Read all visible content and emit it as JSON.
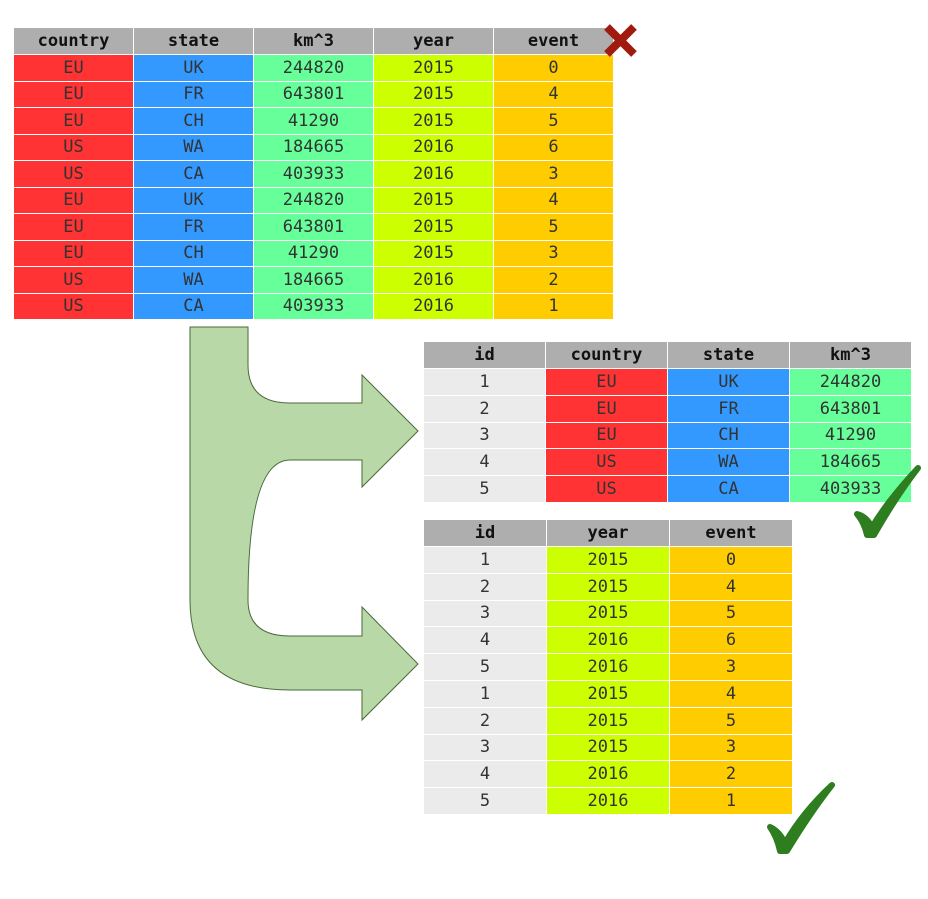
{
  "wide_table": {
    "headers": [
      "country",
      "state",
      "km^3",
      "year",
      "event"
    ],
    "rows": [
      [
        "EU",
        "UK",
        "244820",
        "2015",
        "0"
      ],
      [
        "EU",
        "FR",
        "643801",
        "2015",
        "4"
      ],
      [
        "EU",
        "CH",
        "41290",
        "2015",
        "5"
      ],
      [
        "US",
        "WA",
        "184665",
        "2016",
        "6"
      ],
      [
        "US",
        "CA",
        "403933",
        "2016",
        "3"
      ],
      [
        "EU",
        "UK",
        "244820",
        "2015",
        "4"
      ],
      [
        "EU",
        "FR",
        "643801",
        "2015",
        "5"
      ],
      [
        "EU",
        "CH",
        "41290",
        "2015",
        "3"
      ],
      [
        "US",
        "WA",
        "184665",
        "2016",
        "2"
      ],
      [
        "US",
        "CA",
        "403933",
        "2016",
        "1"
      ]
    ]
  },
  "dimension_table": {
    "headers": [
      "id",
      "country",
      "state",
      "km^3"
    ],
    "rows": [
      [
        "1",
        "EU",
        "UK",
        "244820"
      ],
      [
        "2",
        "EU",
        "FR",
        "643801"
      ],
      [
        "3",
        "EU",
        "CH",
        "41290"
      ],
      [
        "4",
        "US",
        "WA",
        "184665"
      ],
      [
        "5",
        "US",
        "CA",
        "403933"
      ]
    ]
  },
  "fact_table": {
    "headers": [
      "id",
      "year",
      "event"
    ],
    "rows": [
      [
        "1",
        "2015",
        "0"
      ],
      [
        "2",
        "2015",
        "4"
      ],
      [
        "3",
        "2015",
        "5"
      ],
      [
        "4",
        "2016",
        "6"
      ],
      [
        "5",
        "2016",
        "3"
      ],
      [
        "1",
        "2015",
        "4"
      ],
      [
        "2",
        "2015",
        "5"
      ],
      [
        "3",
        "2015",
        "3"
      ],
      [
        "4",
        "2016",
        "2"
      ],
      [
        "5",
        "2016",
        "1"
      ]
    ]
  },
  "colors": {
    "country": "#ff3333",
    "state": "#3399ff",
    "km^3": "#66ff99",
    "year": "#ccff00",
    "event": "#ffcc00",
    "id": "#ebebeb",
    "header": "#aeaeae",
    "arrow_fill": "#b8d8a8",
    "arrow_stroke": "#4a6a3a",
    "cross": "#a01a10",
    "check": "#2e7d1e"
  },
  "icons": {
    "wide_table_status": "cross-icon",
    "dimension_table_status": "check-icon",
    "fact_table_status": "check-icon"
  }
}
